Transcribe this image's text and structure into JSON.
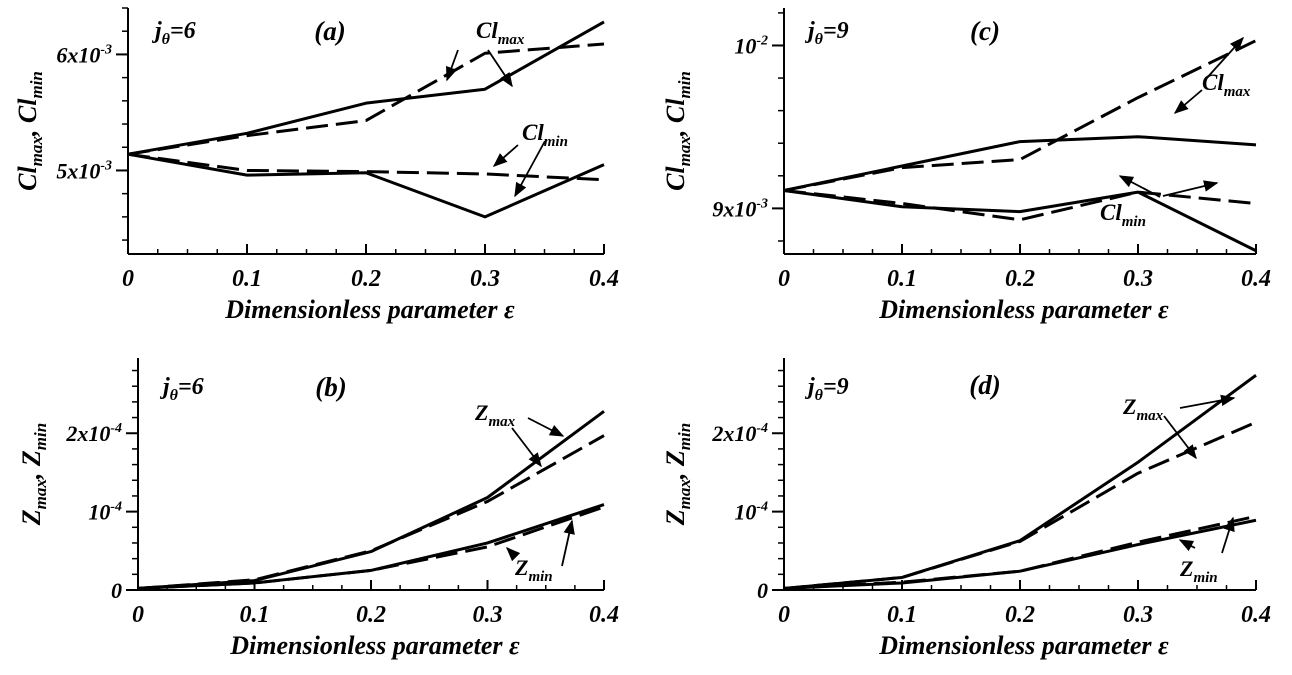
{
  "figure": {
    "xlabel": "Dimensionless parameter ε"
  },
  "chart_data": [
    {
      "type": "line",
      "panel": "(a)",
      "j_label": "j",
      "j_sub": "θ",
      "j_value": "=6",
      "ylabel_parts": [
        "Cl",
        "max",
        ", Cl",
        "min"
      ],
      "xlabel": "Dimensionless parameter ε",
      "xticks": [
        "0",
        "0.1",
        "0.2",
        "0.3",
        "0.4"
      ],
      "yticks": [
        {
          "value": 0.005,
          "base": "5x10",
          "exp": "-3"
        },
        {
          "value": 0.006,
          "base": "6x10",
          "exp": "-3"
        }
      ],
      "xlim": [
        0,
        0.4
      ],
      "ylim": [
        0.00428,
        0.0064
      ],
      "x": [
        0,
        0.1,
        0.2,
        0.3,
        0.4
      ],
      "series": [
        {
          "style": "solid",
          "values": [
            0.00514,
            0.00532,
            0.00558,
            0.0057,
            0.00628
          ]
        },
        {
          "style": "dashed",
          "values": [
            0.00514,
            0.0053,
            0.00543,
            0.00601,
            0.00609
          ]
        },
        {
          "style": "solid",
          "values": [
            0.00514,
            0.00496,
            0.00498,
            0.0046,
            0.00505
          ]
        },
        {
          "style": "dashed",
          "values": [
            0.00514,
            0.005,
            0.00499,
            0.00497,
            0.00492
          ]
        }
      ],
      "annotations": [
        {
          "base": "Cl",
          "sub": "max"
        },
        {
          "base": "Cl",
          "sub": "min"
        }
      ]
    },
    {
      "type": "line",
      "panel": "(b)",
      "j_label": "j",
      "j_sub": "θ",
      "j_value": "=6",
      "ylabel_parts": [
        "Z",
        "max",
        ", Z",
        "min"
      ],
      "xlabel": "Dimensionless parameter ε",
      "xticks": [
        "0",
        "0.1",
        "0.2",
        "0.3",
        "0.4"
      ],
      "yticks": [
        {
          "value": 0,
          "base": "0",
          "exp": ""
        },
        {
          "value": 0.0001,
          "base": "10",
          "exp": "-4"
        },
        {
          "value": 0.0002,
          "base": "2x10",
          "exp": "-4"
        }
      ],
      "xlim": [
        0,
        0.4
      ],
      "ylim": [
        0,
        0.000296
      ],
      "x": [
        0,
        0.1,
        0.2,
        0.3,
        0.4
      ],
      "series": [
        {
          "style": "solid",
          "values": [
            2e-06,
            1.2e-05,
            4.9e-05,
            0.000118,
            0.000228
          ]
        },
        {
          "style": "dashed",
          "values": [
            2e-06,
            1.3e-05,
            5e-05,
            0.000113,
            0.000197
          ]
        },
        {
          "style": "solid",
          "values": [
            2e-06,
            9e-06,
            2.5e-05,
            6e-05,
            0.000109
          ]
        },
        {
          "style": "dashed",
          "values": [
            2e-06,
            9e-06,
            2.5e-05,
            5.5e-05,
            0.000106
          ]
        }
      ],
      "annotations": [
        {
          "base": "Z",
          "sub": "max"
        },
        {
          "base": "Z",
          "sub": "min"
        }
      ]
    },
    {
      "type": "line",
      "panel": "(c)",
      "j_label": "j",
      "j_sub": "θ",
      "j_value": "=9",
      "ylabel_parts": [
        "Cl",
        "max",
        ", Cl",
        "min"
      ],
      "xlabel": "Dimensionless parameter ε",
      "xticks": [
        "0",
        "0.1",
        "0.2",
        "0.3",
        "0.4"
      ],
      "yticks": [
        {
          "value": 0.009,
          "base": "9x10",
          "exp": "-3"
        },
        {
          "value": 0.01,
          "base": "10",
          "exp": "-2"
        }
      ],
      "xlim": [
        0,
        0.4
      ],
      "ylim": [
        0.00872,
        0.01023
      ],
      "x": [
        0,
        0.1,
        0.2,
        0.3,
        0.4
      ],
      "series": [
        {
          "style": "solid",
          "values": [
            0.00911,
            0.00926,
            0.00941,
            0.00944,
            0.00939
          ]
        },
        {
          "style": "dashed",
          "values": [
            0.00911,
            0.00925,
            0.0093,
            0.00968,
            0.01003
          ]
        },
        {
          "style": "solid",
          "values": [
            0.00911,
            0.00901,
            0.00898,
            0.0091,
            0.00874
          ]
        },
        {
          "style": "dashed",
          "values": [
            0.00911,
            0.00903,
            0.00893,
            0.0091,
            0.00903
          ]
        }
      ],
      "annotations": [
        {
          "base": "Cl",
          "sub": "max"
        },
        {
          "base": "Cl",
          "sub": "min"
        }
      ]
    },
    {
      "type": "line",
      "panel": "(d)",
      "j_label": "j",
      "j_sub": "θ",
      "j_value": "=9",
      "ylabel_parts": [
        "Z",
        "max",
        ", Z",
        "min"
      ],
      "xlabel": "Dimensionless parameter ε",
      "xticks": [
        "0",
        "0.1",
        "0.2",
        "0.3",
        "0.4"
      ],
      "yticks": [
        {
          "value": 0,
          "base": "0",
          "exp": ""
        },
        {
          "value": 0.0001,
          "base": "10",
          "exp": "-4"
        },
        {
          "value": 0.0002,
          "base": "2x10",
          "exp": "-4"
        }
      ],
      "xlim": [
        0,
        0.4
      ],
      "ylim": [
        0,
        0.000296
      ],
      "x": [
        0,
        0.1,
        0.2,
        0.3,
        0.4
      ],
      "series": [
        {
          "style": "solid",
          "values": [
            2e-06,
            1.6e-05,
            6.3e-05,
            0.000163,
            0.000274
          ]
        },
        {
          "style": "dashed",
          "values": [
            2e-06,
            1.6e-05,
            6.2e-05,
            0.000149,
            0.000214
          ]
        },
        {
          "style": "solid",
          "values": [
            2e-06,
            9e-06,
            2.4e-05,
            5.8e-05,
            8.9e-05
          ]
        },
        {
          "style": "dashed",
          "values": [
            2e-06,
            1e-05,
            2.4e-05,
            6.1e-05,
            9.4e-05
          ]
        }
      ],
      "annotations": [
        {
          "base": "Z",
          "sub": "max"
        },
        {
          "base": "Z",
          "sub": "min"
        }
      ]
    }
  ]
}
